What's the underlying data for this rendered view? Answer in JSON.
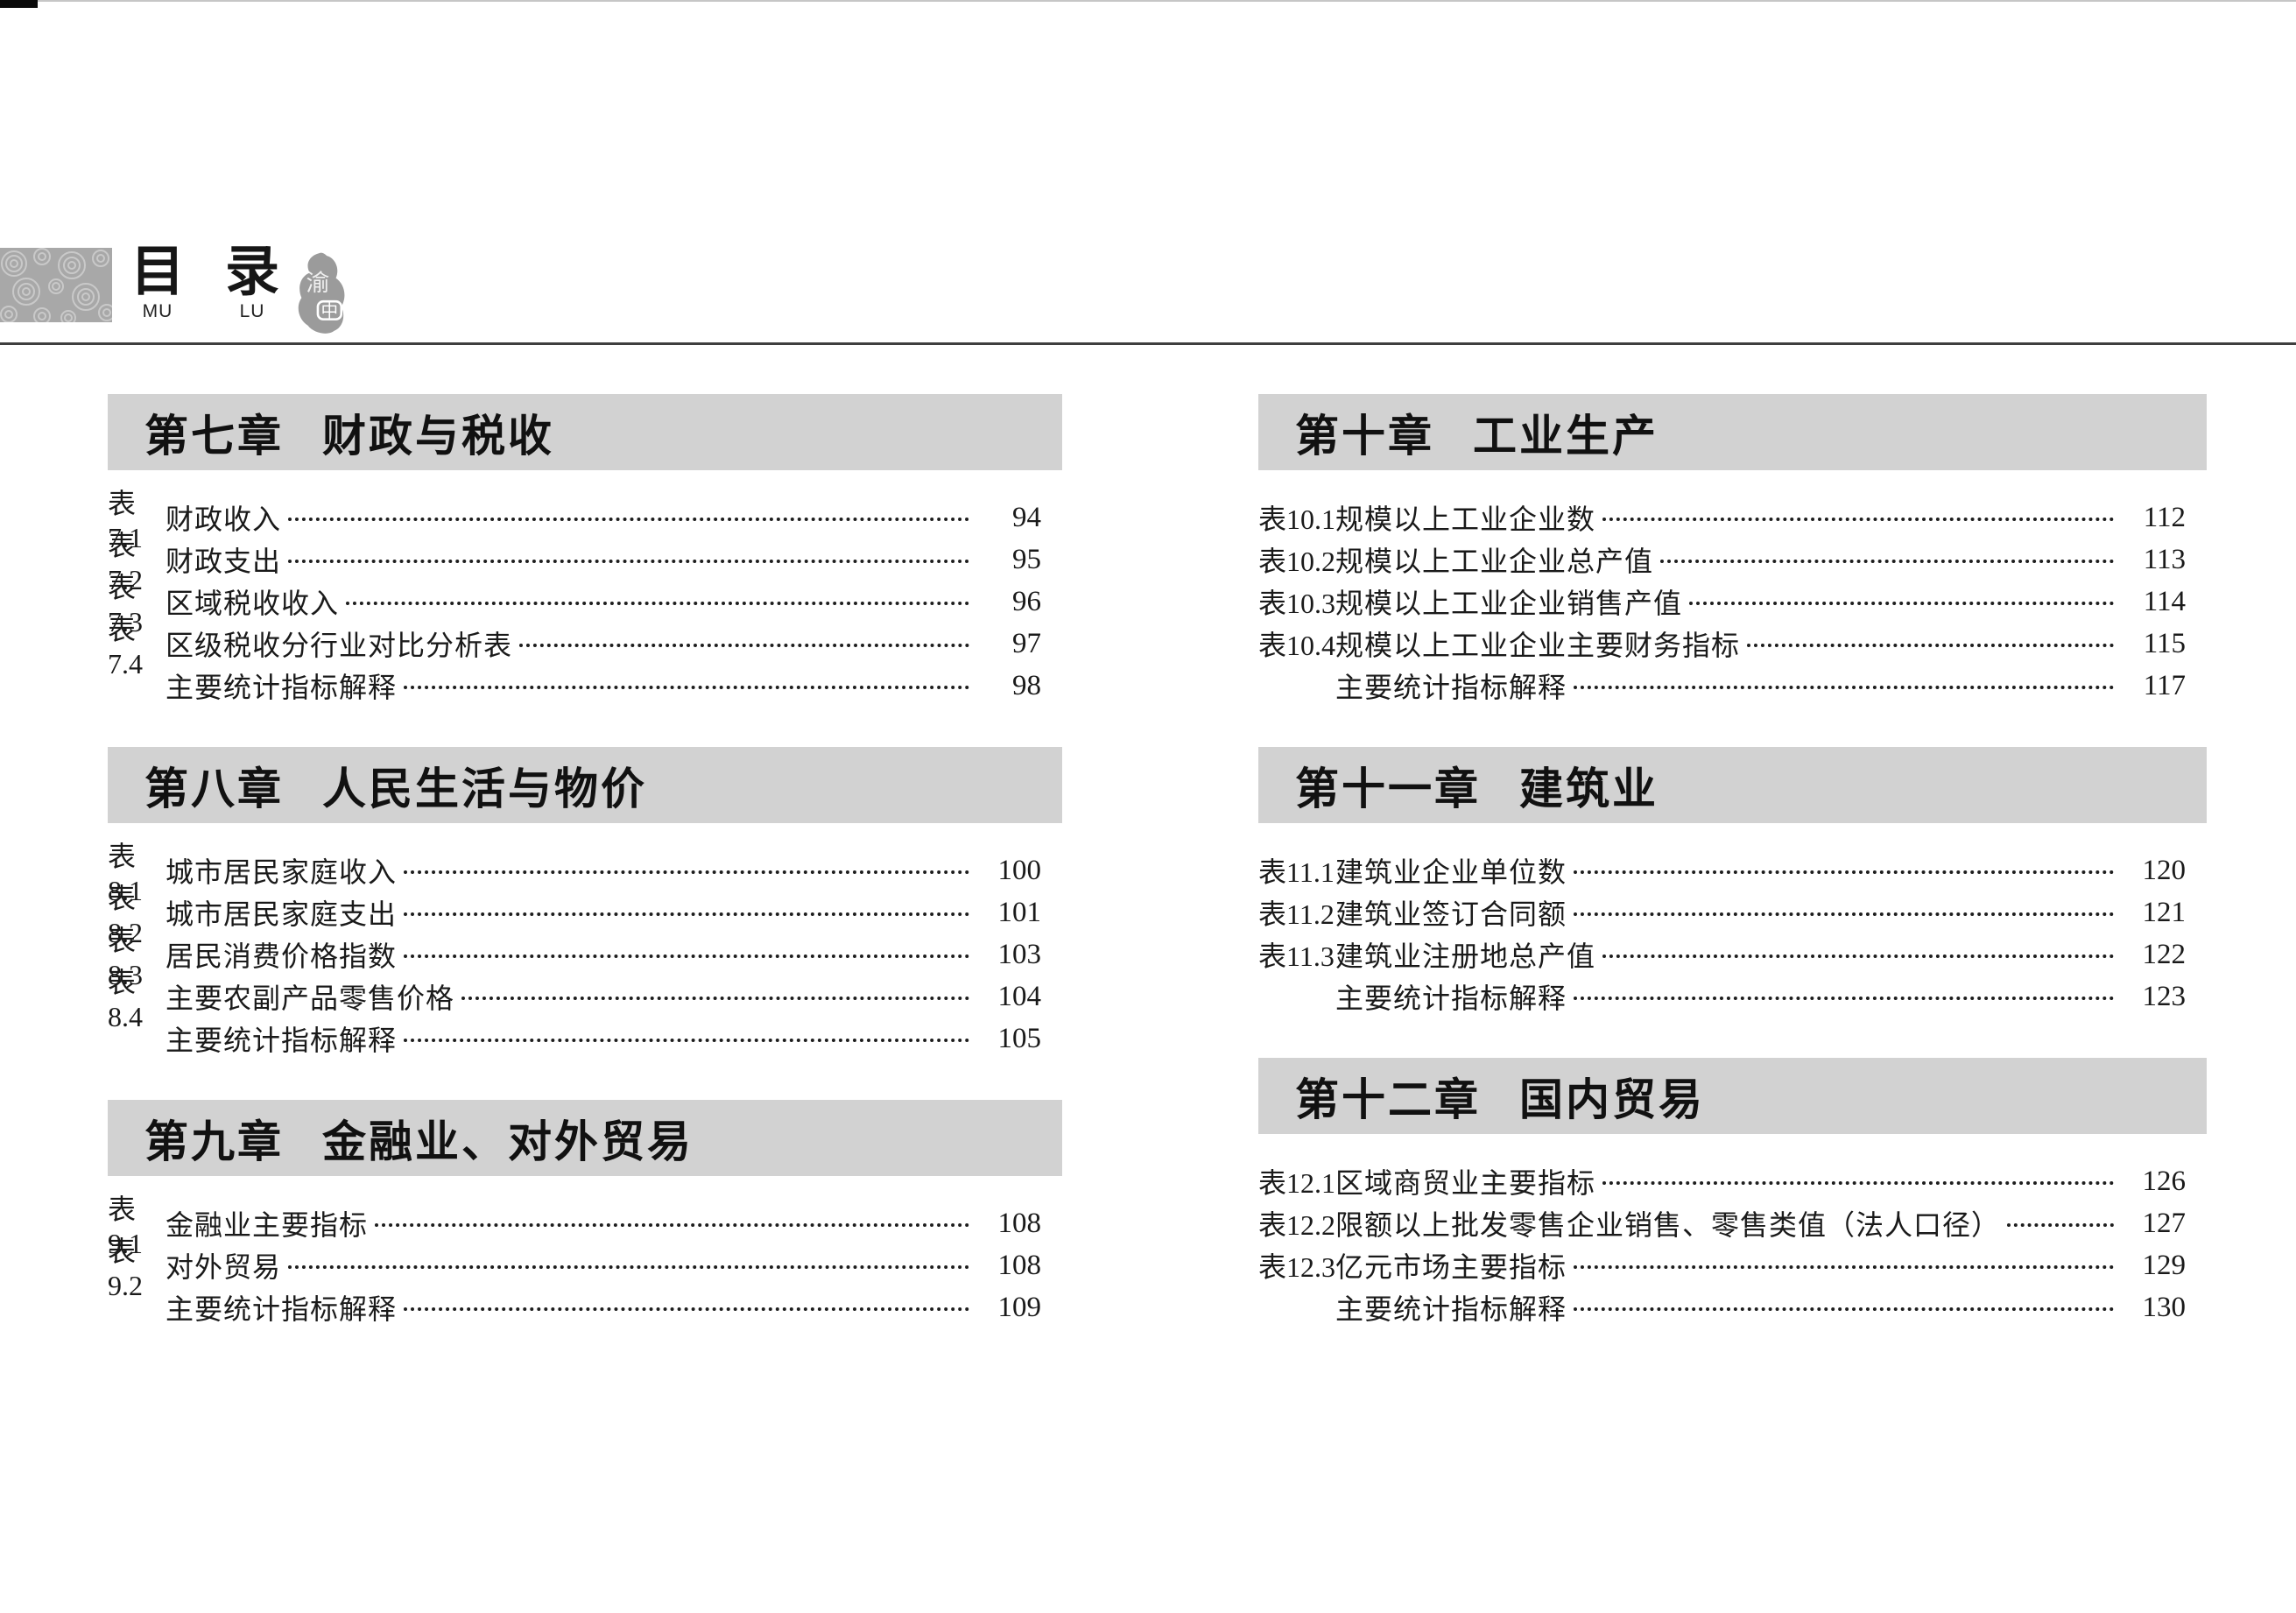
{
  "header": {
    "title_chars": [
      {
        "char": "目",
        "pinyin": "MU"
      },
      {
        "char": "录",
        "pinyin": "LU"
      }
    ],
    "seal": {
      "char_top": "渝",
      "char_bottom": "中"
    }
  },
  "colors": {
    "banner_bg": "#d2d2d2",
    "text": "#1a1a1a",
    "leader_dots": "#1e1e1e",
    "divider": "#3f3f3f",
    "swirl_bg": "#a8a8a8",
    "swirl_line": "#c9c9c9",
    "seal_gray": "#9b9b9b"
  },
  "toc": {
    "columns": [
      {
        "sections": [
          {
            "chapter_no": "第七章",
            "chapter_title": "财政与税收",
            "entries": [
              {
                "label": "表7.1",
                "title": "财政收入",
                "page": "94"
              },
              {
                "label": "表7.2",
                "title": "财政支出",
                "page": "95"
              },
              {
                "label": "表7.3",
                "title": "区域税收收入",
                "page": "96"
              },
              {
                "label": "表7.4",
                "title": "区级税收分行业对比分析表",
                "page": "97"
              },
              {
                "label": "",
                "title": "主要统计指标解释",
                "page": "98"
              }
            ]
          },
          {
            "chapter_no": "第八章",
            "chapter_title": "人民生活与物价",
            "entries": [
              {
                "label": "表8.1",
                "title": "城市居民家庭收入",
                "page": "100"
              },
              {
                "label": "表8.2",
                "title": "城市居民家庭支出",
                "page": "101"
              },
              {
                "label": "表8.3",
                "title": "居民消费价格指数",
                "page": "103"
              },
              {
                "label": "表8.4",
                "title": "主要农副产品零售价格",
                "page": "104"
              },
              {
                "label": "",
                "title": "主要统计指标解释",
                "page": "105"
              }
            ]
          },
          {
            "chapter_no": "第九章",
            "chapter_title": "金融业、对外贸易",
            "entries": [
              {
                "label": "表9.1",
                "title": "金融业主要指标",
                "page": "108"
              },
              {
                "label": "表9.2",
                "title": "对外贸易",
                "page": "108"
              },
              {
                "label": "",
                "title": "主要统计指标解释",
                "page": "109"
              }
            ]
          }
        ]
      },
      {
        "sections": [
          {
            "chapter_no": "第十章",
            "chapter_title": "工业生产",
            "entries": [
              {
                "label": "表10.1",
                "title": "规模以上工业企业数",
                "page": "112"
              },
              {
                "label": "表10.2",
                "title": "规模以上工业企业总产值",
                "page": "113"
              },
              {
                "label": "表10.3",
                "title": "规模以上工业企业销售产值",
                "page": "114"
              },
              {
                "label": "表10.4",
                "title": "规模以上工业企业主要财务指标",
                "page": "115"
              },
              {
                "label": "",
                "title": "主要统计指标解释",
                "page": "117"
              }
            ]
          },
          {
            "chapter_no": "第十一章",
            "chapter_title": "建筑业",
            "entries": [
              {
                "label": "表11.1",
                "title": "建筑业企业单位数",
                "page": "120"
              },
              {
                "label": "表11.2",
                "title": "建筑业签订合同额",
                "page": "121"
              },
              {
                "label": "表11.3",
                "title": "建筑业注册地总产值",
                "page": "122"
              },
              {
                "label": "",
                "title": "主要统计指标解释",
                "page": "123"
              }
            ]
          },
          {
            "chapter_no": "第十二章",
            "chapter_title": "国内贸易",
            "entries": [
              {
                "label": "表12.1",
                "title": "区域商贸业主要指标",
                "page": "126"
              },
              {
                "label": "表12.2",
                "title": "限额以上批发零售企业销售、零售类值（法人口径）",
                "page": "127"
              },
              {
                "label": "表12.3",
                "title": "亿元市场主要指标",
                "page": "129"
              },
              {
                "label": "",
                "title": "主要统计指标解释",
                "page": "130"
              }
            ]
          }
        ]
      }
    ]
  }
}
